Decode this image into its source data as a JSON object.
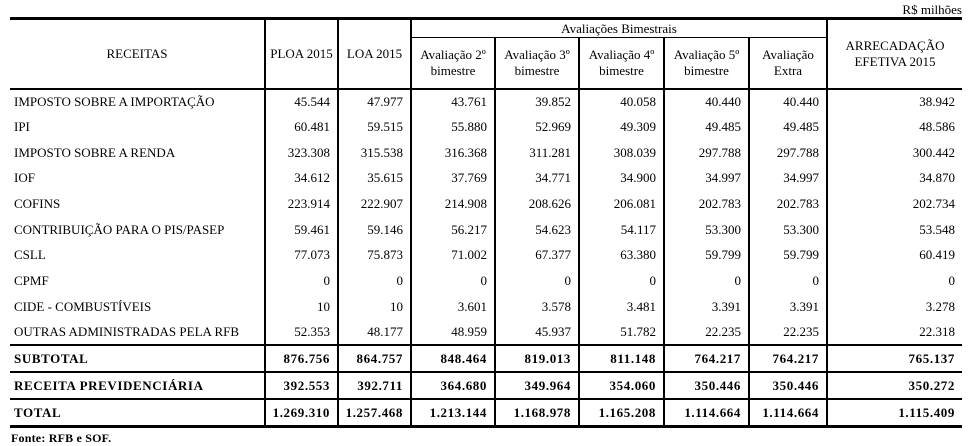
{
  "unit_label": "R$ milhões",
  "colors": {
    "border": "#000000",
    "text": "#000000",
    "background": "#ffffff"
  },
  "table": {
    "header": {
      "receitas": "RECEITAS",
      "ploa": "PLOA 2015",
      "loa": "LOA 2015",
      "group": "Avaliações Bimestrais",
      "group_cols": [
        {
          "line1": "Avaliação 2º",
          "line2": "bimestre"
        },
        {
          "line1": "Avaliação 3º",
          "line2": "bimestre"
        },
        {
          "line1": "Avaliação 4º",
          "line2": "bimestre"
        },
        {
          "line1": "Avaliação 5º",
          "line2": "bimestre"
        },
        {
          "line1": "Avaliação",
          "line2": "Extra"
        }
      ],
      "arrecadacao_line1": "ARRECADAÇÃO",
      "arrecadacao_line2": "EFETIVA 2015"
    },
    "rows": [
      {
        "label": "IMPOSTO SOBRE A IMPORTAÇÃO",
        "values": [
          "45.544",
          "47.977",
          "43.761",
          "39.852",
          "40.058",
          "40.440",
          "40.440",
          "38.942"
        ]
      },
      {
        "label": "IPI",
        "values": [
          "60.481",
          "59.515",
          "55.880",
          "52.969",
          "49.309",
          "49.485",
          "49.485",
          "48.586"
        ]
      },
      {
        "label": "IMPOSTO SOBRE A RENDA",
        "values": [
          "323.308",
          "315.538",
          "316.368",
          "311.281",
          "308.039",
          "297.788",
          "297.788",
          "300.442"
        ]
      },
      {
        "label": "IOF",
        "values": [
          "34.612",
          "35.615",
          "37.769",
          "34.771",
          "34.900",
          "34.997",
          "34.997",
          "34.870"
        ]
      },
      {
        "label": "COFINS",
        "values": [
          "223.914",
          "222.907",
          "214.908",
          "208.626",
          "206.081",
          "202.783",
          "202.783",
          "202.734"
        ]
      },
      {
        "label": "CONTRIBUIÇÃO PARA O PIS/PASEP",
        "values": [
          "59.461",
          "59.146",
          "56.217",
          "54.623",
          "54.117",
          "53.300",
          "53.300",
          "53.548"
        ]
      },
      {
        "label": "CSLL",
        "values": [
          "77.073",
          "75.873",
          "71.002",
          "67.377",
          "63.380",
          "59.799",
          "59.799",
          "60.419"
        ]
      },
      {
        "label": "CPMF",
        "values": [
          "0",
          "0",
          "0",
          "0",
          "0",
          "0",
          "0",
          "0"
        ]
      },
      {
        "label": "CIDE - COMBUSTÍVEIS",
        "values": [
          "10",
          "10",
          "3.601",
          "3.578",
          "3.481",
          "3.391",
          "3.391",
          "3.278"
        ]
      },
      {
        "label": "OUTRAS ADMINISTRADAS PELA RFB",
        "values": [
          "52.353",
          "48.177",
          "48.959",
          "45.937",
          "51.782",
          "22.235",
          "22.235",
          "22.318"
        ]
      }
    ],
    "total_rows": [
      {
        "label": "SUBTOTAL",
        "values": [
          "876.756",
          "864.757",
          "848.464",
          "819.013",
          "811.148",
          "764.217",
          "764.217",
          "765.137"
        ]
      },
      {
        "label": "RECEITA PREVIDENCIÁRIA",
        "values": [
          "392.553",
          "392.711",
          "364.680",
          "349.964",
          "354.060",
          "350.446",
          "350.446",
          "350.272"
        ]
      },
      {
        "label": "TOTAL",
        "values": [
          "1.269.310",
          "1.257.468",
          "1.213.144",
          "1.168.978",
          "1.165.208",
          "1.114.664",
          "1.114.664",
          "1.115.409"
        ]
      }
    ]
  },
  "footer": {
    "source": "Fonte: RFB e SOF."
  }
}
